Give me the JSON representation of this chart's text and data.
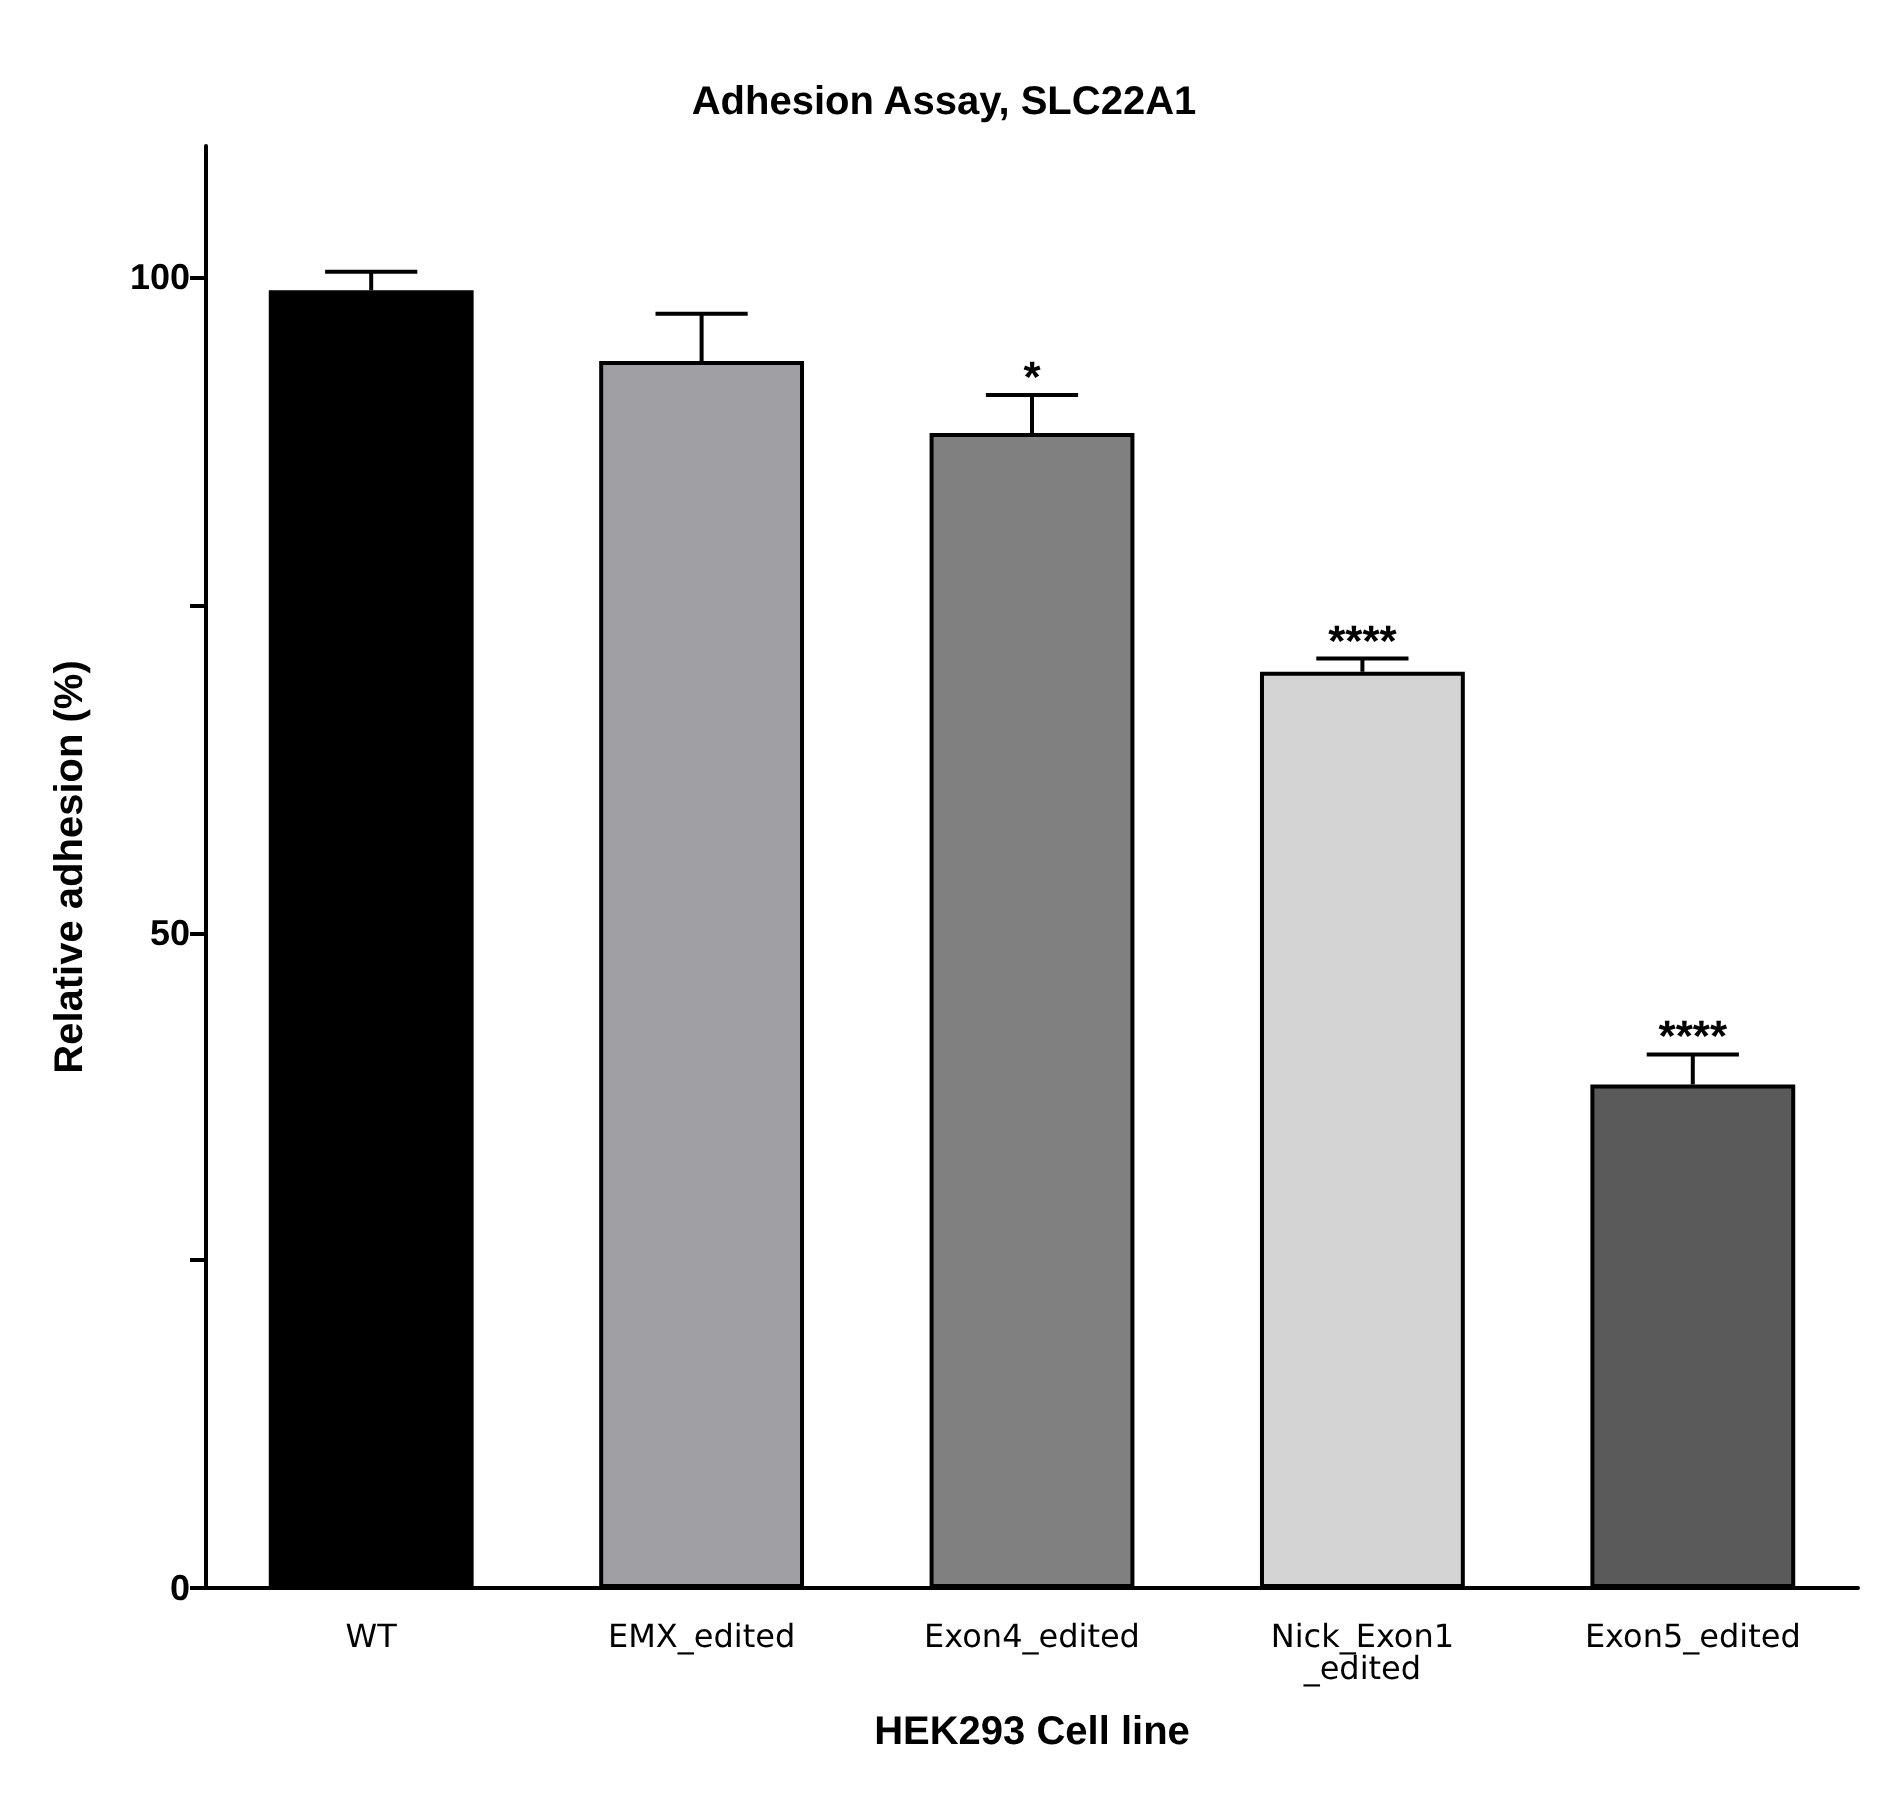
{
  "chart_data": {
    "type": "bar",
    "title": "Adhesion Assay, SLC22A1",
    "xlabel": "HEK293 Cell line",
    "ylabel": "Relative adhesion (%)",
    "categories": [
      "WT",
      "EMX_edited",
      "Exon4_edited",
      "Nick_Exon1_edited",
      "Exon5_edited"
    ],
    "values": [
      99,
      93.6,
      88.1,
      69.9,
      38.4
    ],
    "colors": [
      "#000000",
      "#a0a0a4",
      "#808080",
      "#d4d4d4",
      "#5a5a5a"
    ],
    "errors": [
      [
        99,
        100.4
      ],
      [
        93.6,
        97.2
      ],
      [
        88.1,
        91
      ],
      [
        69.9,
        70.9
      ],
      [
        38.4,
        40.7
      ]
    ],
    "ylim": [
      0,
      110
    ],
    "yticks": [
      0,
      {
        "value": 25,
        "label": null
      },
      50,
      {
        "value": 75,
        "label": null
      },
      100
    ],
    "grid": false,
    "annotations": [
      {
        "text": "*",
        "x": "Exon4_edited",
        "y": 91
      },
      {
        "text": "****",
        "x": "Nick_Exon1_edited",
        "y": 70.9
      },
      {
        "text": "****",
        "x": "Exon5_edited",
        "y": 40.7
      }
    ]
  }
}
